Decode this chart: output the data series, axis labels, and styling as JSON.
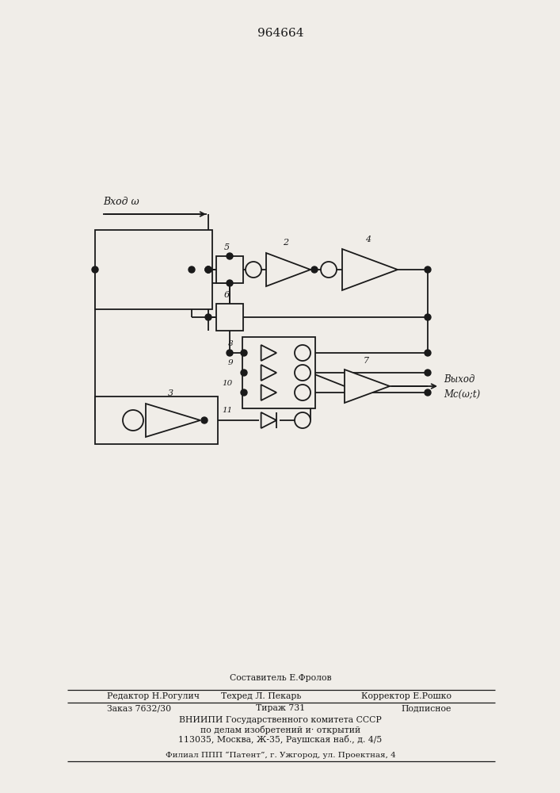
{
  "title": "964664",
  "bg_color": "#f0ede8",
  "line_color": "#1a1a1a",
  "input_label": "Вход ω",
  "output_label1": "Выход",
  "output_label2": "Мс(ω;t)"
}
